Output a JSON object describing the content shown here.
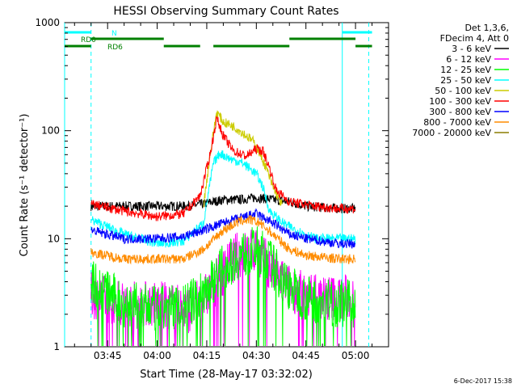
{
  "chart_data": {
    "type": "line",
    "title": "HESSI Observing Summary Count Rates",
    "xlabel": "Start Time (28-May-17 03:32:02)",
    "ylabel": "Count Rate (s⁻¹ detector⁻¹)",
    "yscale": "log",
    "ylim": [
      1,
      1000
    ],
    "y_ticks": [
      "1",
      "10",
      "100",
      "1000"
    ],
    "xlim": [
      "03:32",
      "05:10"
    ],
    "x_ticks": [
      "03:45",
      "04:00",
      "04:15",
      "04:30",
      "04:45",
      "05:00"
    ],
    "legend_header": [
      "Det 1,3,6,",
      "FDecim 4, Att 0"
    ],
    "legend_placement": "right",
    "footer_stamp": "6-Dec-2017 15:38",
    "data_gap_before": "03:40",
    "series": [
      {
        "name": "3 - 6 keV",
        "color": "#000000",
        "points": [
          [
            "03:40",
            20
          ],
          [
            "03:50",
            20
          ],
          [
            "04:00",
            20
          ],
          [
            "04:08",
            20
          ],
          [
            "04:14",
            21
          ],
          [
            "04:20",
            23
          ],
          [
            "04:25",
            23
          ],
          [
            "04:30",
            24
          ],
          [
            "04:35",
            23
          ],
          [
            "04:40",
            22
          ],
          [
            "04:45",
            20
          ],
          [
            "04:55",
            19
          ],
          [
            "05:00",
            19
          ]
        ]
      },
      {
        "name": "6 - 12 keV",
        "color": "#ff00ff",
        "points": [
          [
            "03:40",
            3
          ],
          [
            "03:50",
            2.5
          ],
          [
            "04:00",
            2.5
          ],
          [
            "04:10",
            2.2
          ],
          [
            "04:15",
            3
          ],
          [
            "04:20",
            5
          ],
          [
            "04:24",
            7
          ],
          [
            "04:28",
            7.5
          ],
          [
            "04:30",
            8
          ],
          [
            "04:33",
            6
          ],
          [
            "04:36",
            4.5
          ],
          [
            "04:40",
            3.5
          ],
          [
            "04:45",
            3
          ],
          [
            "04:55",
            2.8
          ],
          [
            "05:00",
            3
          ]
        ]
      },
      {
        "name": "12 - 25 keV",
        "color": "#00ff00",
        "points": [
          [
            "03:40",
            4
          ],
          [
            "03:50",
            2.5
          ],
          [
            "04:00",
            2.2
          ],
          [
            "04:10",
            2.5
          ],
          [
            "04:15",
            3.5
          ],
          [
            "04:20",
            5.5
          ],
          [
            "04:25",
            7
          ],
          [
            "04:30",
            8
          ],
          [
            "04:33",
            7
          ],
          [
            "04:36",
            5
          ],
          [
            "04:40",
            3.5
          ],
          [
            "04:45",
            2.8
          ],
          [
            "04:55",
            2.5
          ],
          [
            "05:00",
            2.5
          ]
        ]
      },
      {
        "name": "25 - 50 keV",
        "color": "#00ffff",
        "points": [
          [
            "03:40",
            15
          ],
          [
            "03:50",
            11
          ],
          [
            "04:00",
            9
          ],
          [
            "04:08",
            9.5
          ],
          [
            "04:14",
            14
          ],
          [
            "04:17",
            50
          ],
          [
            "04:19",
            62
          ],
          [
            "04:22",
            55
          ],
          [
            "04:26",
            50
          ],
          [
            "04:30",
            40
          ],
          [
            "04:32",
            30
          ],
          [
            "04:34",
            18
          ],
          [
            "04:38",
            14
          ],
          [
            "04:42",
            12
          ],
          [
            "04:48",
            10
          ],
          [
            "04:55",
            10
          ],
          [
            "05:00",
            10
          ]
        ]
      },
      {
        "name": "50 - 100 keV",
        "color": "#cccc00",
        "points": [
          [
            "04:14",
            20
          ],
          [
            "04:16",
            60
          ],
          [
            "04:18",
            150
          ],
          [
            "04:20",
            120
          ],
          [
            "04:23",
            110
          ],
          [
            "04:26",
            95
          ],
          [
            "04:29",
            80
          ],
          [
            "04:31",
            62
          ],
          [
            "04:33",
            45
          ],
          [
            "04:35",
            30
          ],
          [
            "04:38",
            20
          ]
        ]
      },
      {
        "name": "100 - 300 keV",
        "color": "#ff0000",
        "points": [
          [
            "03:40",
            21
          ],
          [
            "03:50",
            18
          ],
          [
            "04:00",
            16
          ],
          [
            "04:08",
            17
          ],
          [
            "04:13",
            25
          ],
          [
            "04:16",
            60
          ],
          [
            "04:18",
            130
          ],
          [
            "04:20",
            90
          ],
          [
            "04:23",
            65
          ],
          [
            "04:27",
            58
          ],
          [
            "04:30",
            68
          ],
          [
            "04:32",
            65
          ],
          [
            "04:34",
            45
          ],
          [
            "04:36",
            28
          ],
          [
            "04:40",
            22
          ],
          [
            "04:48",
            20
          ],
          [
            "04:55",
            19
          ],
          [
            "05:00",
            19
          ]
        ]
      },
      {
        "name": "300 - 800 keV",
        "color": "#0000ff",
        "points": [
          [
            "03:40",
            12
          ],
          [
            "03:50",
            10
          ],
          [
            "04:00",
            10
          ],
          [
            "04:08",
            10.5
          ],
          [
            "04:14",
            12
          ],
          [
            "04:20",
            14
          ],
          [
            "04:25",
            15.5
          ],
          [
            "04:30",
            17
          ],
          [
            "04:35",
            14
          ],
          [
            "04:40",
            11
          ],
          [
            "04:45",
            10
          ],
          [
            "04:55",
            9
          ],
          [
            "05:00",
            9
          ]
        ]
      },
      {
        "name": "800 - 7000 keV",
        "color": "#ff8c00",
        "points": [
          [
            "03:40",
            7.5
          ],
          [
            "03:50",
            6.5
          ],
          [
            "04:00",
            6.5
          ],
          [
            "04:08",
            6.5
          ],
          [
            "04:14",
            8
          ],
          [
            "04:20",
            12
          ],
          [
            "04:25",
            14.5
          ],
          [
            "04:28",
            15
          ],
          [
            "04:31",
            14
          ],
          [
            "04:35",
            11
          ],
          [
            "04:40",
            8
          ],
          [
            "04:45",
            7
          ],
          [
            "04:55",
            6.5
          ],
          [
            "05:00",
            6.5
          ]
        ]
      },
      {
        "name": "7000 - 20000 keV",
        "color": "#8b7d00",
        "points": []
      }
    ],
    "attenuator_bars": [
      {
        "label": "N",
        "color": "#00ffff",
        "segments": [
          [
            "03:32",
            "03:40"
          ],
          [
            "04:56",
            "05:05"
          ]
        ]
      },
      {
        "label": "RD0",
        "color": "#008000",
        "segments": [
          [
            "03:40",
            "04:02"
          ],
          [
            "04:40",
            "05:00"
          ]
        ]
      },
      {
        "label": "RD6",
        "color": "#008000",
        "segments": [
          [
            "03:32",
            "03:40"
          ],
          [
            "04:02",
            "04:13"
          ],
          [
            "04:17",
            "04:40"
          ],
          [
            "05:00",
            "05:05"
          ]
        ]
      }
    ],
    "vertical_markers": [
      {
        "time": "03:32",
        "color": "#00ffff",
        "style": "solid"
      },
      {
        "time": "03:40",
        "color": "#00ffff",
        "style": "dashed"
      },
      {
        "time": "04:56",
        "color": "#00ffff",
        "style": "solid"
      },
      {
        "time": "05:04",
        "color": "#00ffff",
        "style": "dashed"
      }
    ]
  }
}
